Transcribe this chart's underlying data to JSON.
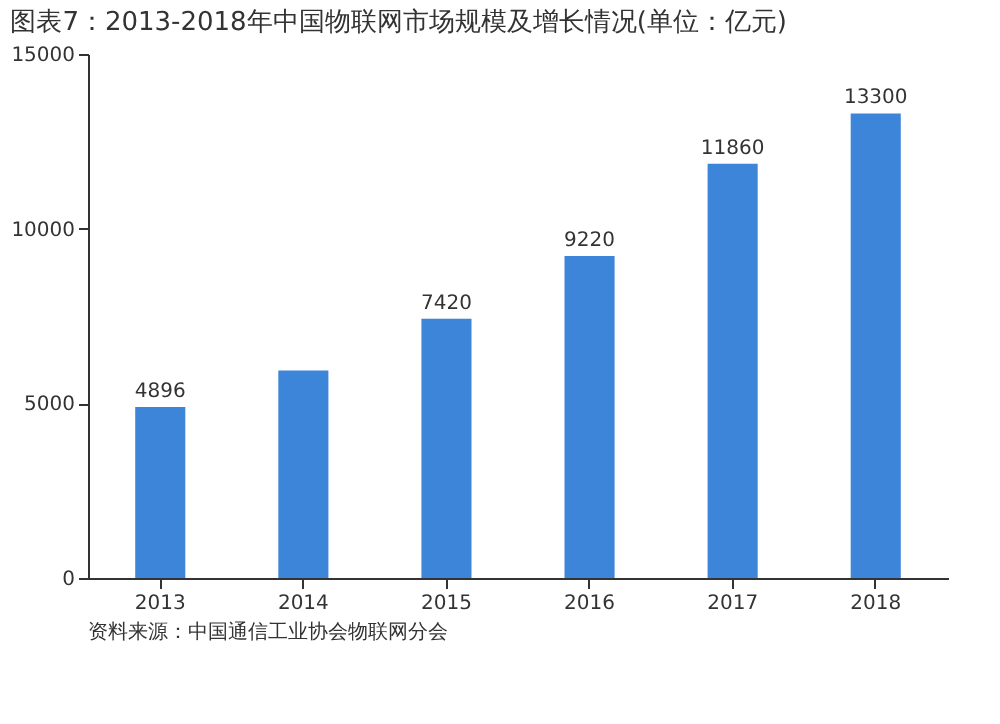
{
  "chart_data": {
    "type": "bar",
    "title": "图表7：2013-2018年中国物联网市场规模及增长情况(单位：亿元)",
    "categories": [
      "2013",
      "2014",
      "2015",
      "2016",
      "2017",
      "2018"
    ],
    "values": [
      4896,
      5940,
      7420,
      9220,
      11860,
      13300
    ],
    "value_labels": [
      "4896",
      null,
      "7420",
      "9220",
      "11860",
      "13300"
    ],
    "color": "#3d85d9",
    "ylim": [
      0,
      15000
    ],
    "yticks": [
      0,
      5000,
      10000,
      15000
    ],
    "grid": false,
    "annotations": [
      "资料来源：中国通信工业协会物联网分会"
    ]
  }
}
